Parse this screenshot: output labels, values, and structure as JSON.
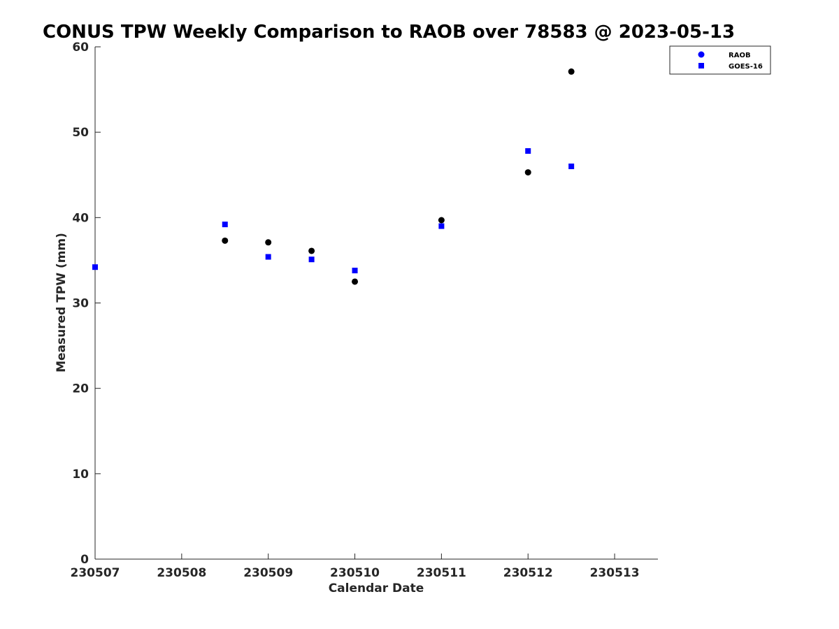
{
  "chart_data": {
    "type": "scatter",
    "title": "CONUS TPW Weekly Comparison to RAOB over 78583 @ 2023-05-13",
    "xlabel": "Calendar Date",
    "ylabel": "Measured TPW (mm)",
    "xlim": [
      0,
      6.5
    ],
    "ylim": [
      0,
      60
    ],
    "x_ticks": [
      {
        "value": 0,
        "label": "230507"
      },
      {
        "value": 1,
        "label": "230508"
      },
      {
        "value": 2,
        "label": "230509"
      },
      {
        "value": 3,
        "label": "230510"
      },
      {
        "value": 4,
        "label": "230511"
      },
      {
        "value": 5,
        "label": "230512"
      },
      {
        "value": 6,
        "label": "230513"
      }
    ],
    "y_ticks": [
      {
        "value": 0,
        "label": "0"
      },
      {
        "value": 10,
        "label": "10"
      },
      {
        "value": 20,
        "label": "20"
      },
      {
        "value": 30,
        "label": "30"
      },
      {
        "value": 40,
        "label": "40"
      },
      {
        "value": 50,
        "label": "50"
      },
      {
        "value": 60,
        "label": "60"
      }
    ],
    "grid": false,
    "legend_position": "top-right",
    "series": [
      {
        "name": "RAOB",
        "marker": "circle",
        "legend_color": "#0000ff",
        "color": "#000000",
        "points": [
          {
            "x": 1.5,
            "y": 37.3
          },
          {
            "x": 2.0,
            "y": 37.1
          },
          {
            "x": 2.5,
            "y": 36.1
          },
          {
            "x": 3.0,
            "y": 32.5
          },
          {
            "x": 4.0,
            "y": 39.7
          },
          {
            "x": 5.0,
            "y": 45.3
          },
          {
            "x": 5.5,
            "y": 57.1
          }
        ]
      },
      {
        "name": "GOES-16",
        "marker": "square",
        "legend_color": "#0000ff",
        "color": "#0000ff",
        "points": [
          {
            "x": 0.0,
            "y": 34.2
          },
          {
            "x": 1.5,
            "y": 39.2
          },
          {
            "x": 2.0,
            "y": 35.4
          },
          {
            "x": 2.5,
            "y": 35.1
          },
          {
            "x": 3.0,
            "y": 33.8
          },
          {
            "x": 4.0,
            "y": 39.0
          },
          {
            "x": 5.0,
            "y": 47.8
          },
          {
            "x": 5.5,
            "y": 46.0
          }
        ]
      }
    ]
  }
}
